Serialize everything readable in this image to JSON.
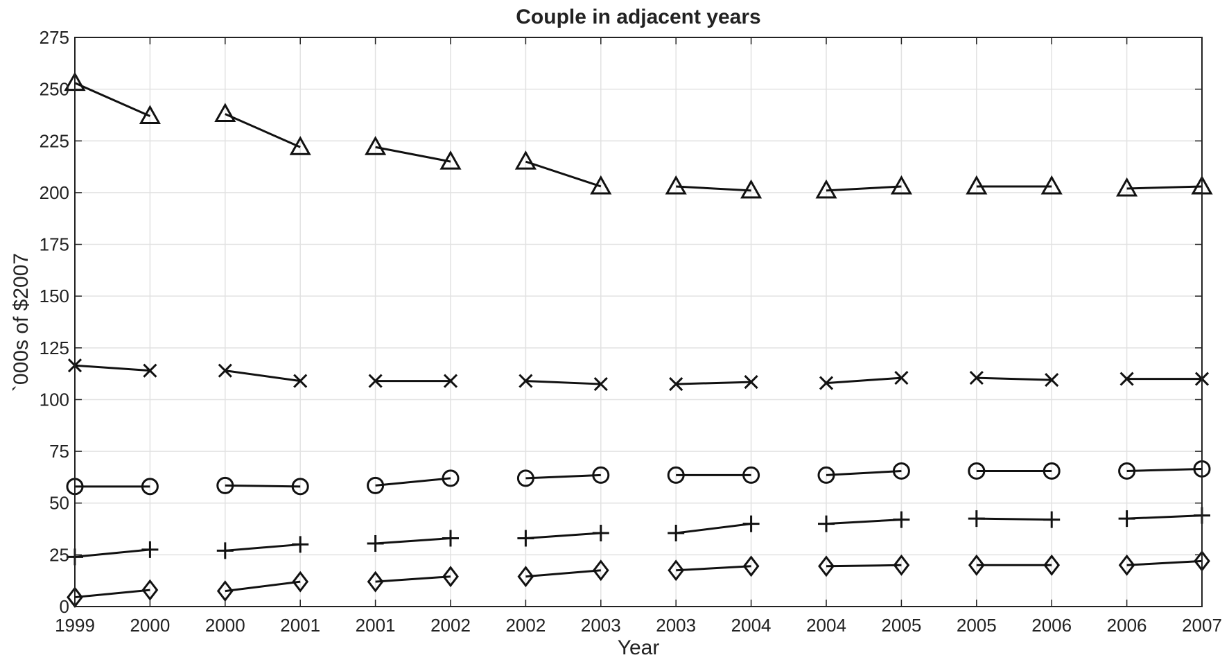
{
  "chart_data": {
    "type": "line",
    "title": "Couple in adjacent years",
    "xlabel": "Year",
    "ylabel": "`000s of $2007",
    "ylim": [
      0,
      275
    ],
    "y_ticks": [
      0,
      25,
      50,
      75,
      100,
      125,
      150,
      175,
      200,
      225,
      250,
      275
    ],
    "grid": true,
    "x_tick_labels": [
      "1999",
      "2000",
      "2000",
      "2001",
      "2001",
      "2002",
      "2002",
      "2003",
      "2003",
      "2004",
      "2004",
      "2005",
      "2005",
      "2006",
      "2006",
      "2007"
    ],
    "pairs": [
      [
        0,
        1
      ],
      [
        2,
        3
      ],
      [
        4,
        5
      ],
      [
        6,
        7
      ],
      [
        8,
        9
      ],
      [
        10,
        11
      ],
      [
        12,
        13
      ],
      [
        14,
        15
      ]
    ],
    "line_color": "#111111",
    "grid_color": "#e2e2e2",
    "series": [
      {
        "marker": "triangle",
        "values": [
          253,
          237,
          238,
          222,
          222,
          215,
          215,
          203,
          203,
          201,
          201,
          203,
          203,
          203,
          202,
          203
        ]
      },
      {
        "marker": "x",
        "values": [
          116.5,
          114,
          114,
          109,
          109,
          109,
          109,
          107.5,
          107.5,
          108.5,
          108,
          110.5,
          110.5,
          109.5,
          110,
          110
        ]
      },
      {
        "marker": "circle",
        "values": [
          58,
          58,
          58.5,
          58,
          58.5,
          62,
          62,
          63.5,
          63.5,
          63.5,
          63.5,
          65.5,
          65.5,
          65.5,
          65.5,
          66.5
        ]
      },
      {
        "marker": "plus",
        "values": [
          24,
          27.5,
          27,
          30,
          30.5,
          33,
          33,
          35.5,
          35.5,
          40,
          40,
          42,
          42.5,
          42,
          42.5,
          44
        ]
      },
      {
        "marker": "diamond",
        "values": [
          4.5,
          8,
          7.5,
          12,
          12,
          14.5,
          14.5,
          17.5,
          17.5,
          19.5,
          19.5,
          20,
          20,
          20,
          20,
          22
        ]
      }
    ]
  }
}
